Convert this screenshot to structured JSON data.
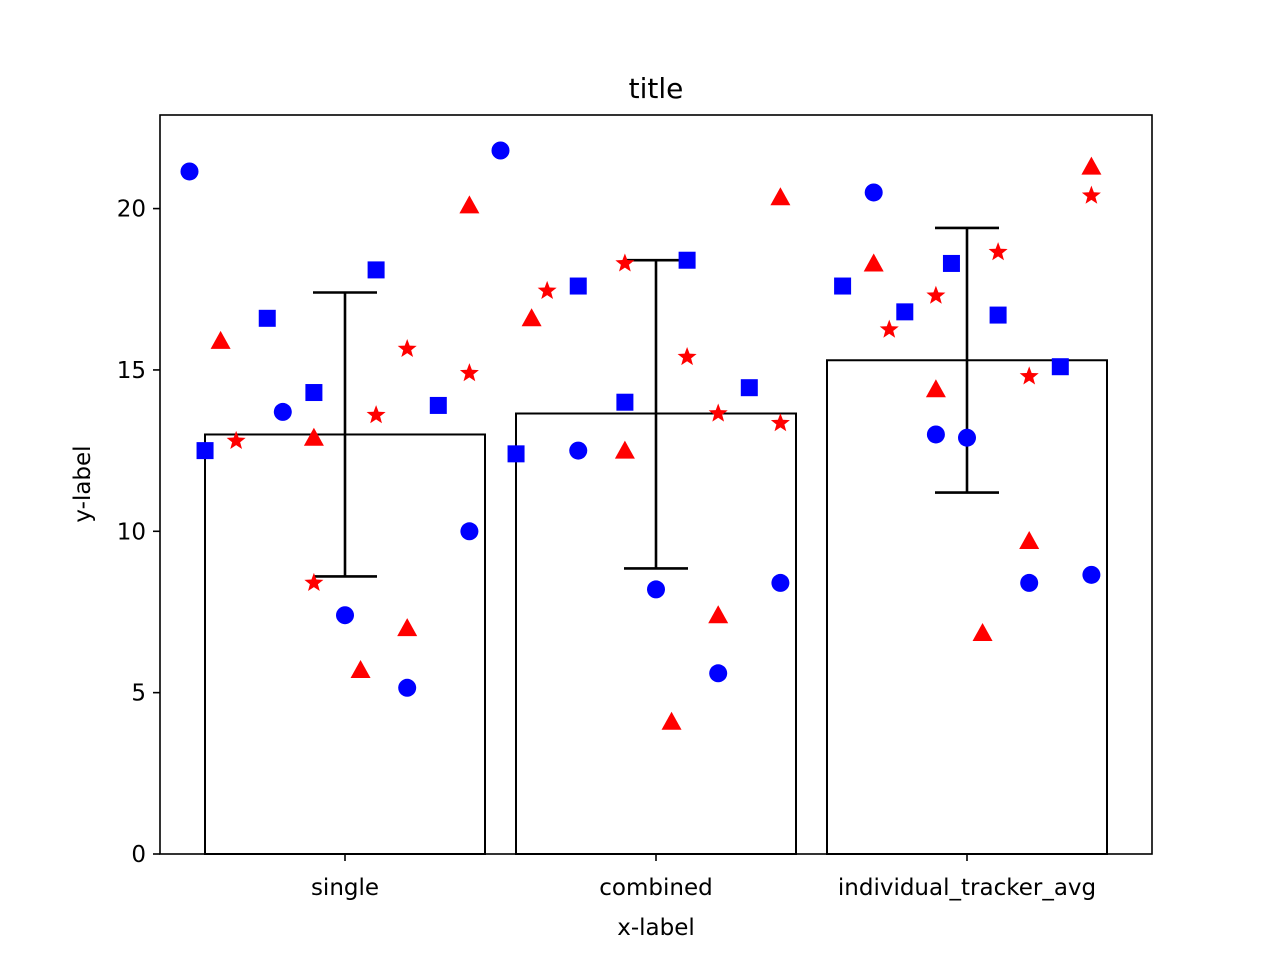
{
  "chart_data": {
    "type": "bar",
    "title": "title",
    "xlabel": "x-label",
    "ylabel": "y-label",
    "categories": [
      "single",
      "combined",
      "individual_tracker_avg"
    ],
    "values": [
      13.0,
      13.65,
      15.3
    ],
    "error_bars": [
      {
        "lower": 8.6,
        "upper": 17.4
      },
      {
        "lower": 8.85,
        "upper": 18.4
      },
      {
        "lower": 11.2,
        "upper": 19.4
      }
    ],
    "ylim": [
      0,
      22.9
    ],
    "yticks": [
      0,
      5,
      10,
      15,
      20
    ],
    "grid": false,
    "colors": {
      "bar_fill": "#ffffff",
      "bar_edge": "#000000",
      "blue": "#0000ff",
      "red": "#ff0000",
      "errorbar": "#000000"
    },
    "scatter_series": [
      {
        "marker": "circle",
        "color": "#0000ff",
        "points": [
          {
            "x": -0.5,
            "y": 21.15
          },
          {
            "x": -0.2,
            "y": 13.7
          },
          {
            "x": 0.0,
            "y": 7.4
          },
          {
            "x": 0.2,
            "y": 5.15
          },
          {
            "x": 0.4,
            "y": 10.0
          },
          {
            "x": 0.5,
            "y": 21.8
          },
          {
            "x": 0.75,
            "y": 12.5
          },
          {
            "x": 1.0,
            "y": 8.2
          },
          {
            "x": 1.2,
            "y": 5.6
          },
          {
            "x": 1.4,
            "y": 8.4
          },
          {
            "x": 1.7,
            "y": 20.5
          },
          {
            "x": 1.9,
            "y": 13.0
          },
          {
            "x": 2.0,
            "y": 12.9
          },
          {
            "x": 2.2,
            "y": 8.4
          },
          {
            "x": 2.4,
            "y": 8.65
          }
        ]
      },
      {
        "marker": "square",
        "color": "#0000ff",
        "points": [
          {
            "x": -0.45,
            "y": 12.5
          },
          {
            "x": -0.25,
            "y": 16.6
          },
          {
            "x": -0.1,
            "y": 14.3
          },
          {
            "x": 0.1,
            "y": 18.1
          },
          {
            "x": 0.3,
            "y": 13.9
          },
          {
            "x": 0.55,
            "y": 12.4
          },
          {
            "x": 0.75,
            "y": 17.6
          },
          {
            "x": 0.9,
            "y": 14.0
          },
          {
            "x": 1.1,
            "y": 18.4
          },
          {
            "x": 1.3,
            "y": 14.45
          },
          {
            "x": 1.6,
            "y": 17.6
          },
          {
            "x": 1.8,
            "y": 16.8
          },
          {
            "x": 1.95,
            "y": 18.3
          },
          {
            "x": 2.1,
            "y": 16.7
          },
          {
            "x": 2.3,
            "y": 15.1
          }
        ]
      },
      {
        "marker": "triangle",
        "color": "#ff0000",
        "points": [
          {
            "x": -0.4,
            "y": 15.9
          },
          {
            "x": -0.1,
            "y": 12.9
          },
          {
            "x": 0.05,
            "y": 5.7
          },
          {
            "x": 0.2,
            "y": 7.0
          },
          {
            "x": 0.4,
            "y": 20.1
          },
          {
            "x": 0.6,
            "y": 16.6
          },
          {
            "x": 0.9,
            "y": 12.5
          },
          {
            "x": 1.05,
            "y": 4.1
          },
          {
            "x": 1.2,
            "y": 7.4
          },
          {
            "x": 1.4,
            "y": 20.35
          },
          {
            "x": 1.7,
            "y": 18.3
          },
          {
            "x": 1.9,
            "y": 14.4
          },
          {
            "x": 2.05,
            "y": 6.85
          },
          {
            "x": 2.2,
            "y": 9.7
          },
          {
            "x": 2.4,
            "y": 21.3
          }
        ]
      },
      {
        "marker": "star",
        "color": "#ff0000",
        "points": [
          {
            "x": -0.35,
            "y": 12.8
          },
          {
            "x": -0.1,
            "y": 8.4
          },
          {
            "x": 0.1,
            "y": 13.6
          },
          {
            "x": 0.2,
            "y": 15.65
          },
          {
            "x": 0.4,
            "y": 14.9
          },
          {
            "x": 0.65,
            "y": 17.45
          },
          {
            "x": 0.9,
            "y": 18.3
          },
          {
            "x": 1.1,
            "y": 15.4
          },
          {
            "x": 1.2,
            "y": 13.65
          },
          {
            "x": 1.4,
            "y": 13.35
          },
          {
            "x": 1.75,
            "y": 16.25
          },
          {
            "x": 1.9,
            "y": 17.3
          },
          {
            "x": 2.1,
            "y": 18.65
          },
          {
            "x": 2.2,
            "y": 14.8
          },
          {
            "x": 2.4,
            "y": 20.4
          }
        ]
      }
    ]
  }
}
